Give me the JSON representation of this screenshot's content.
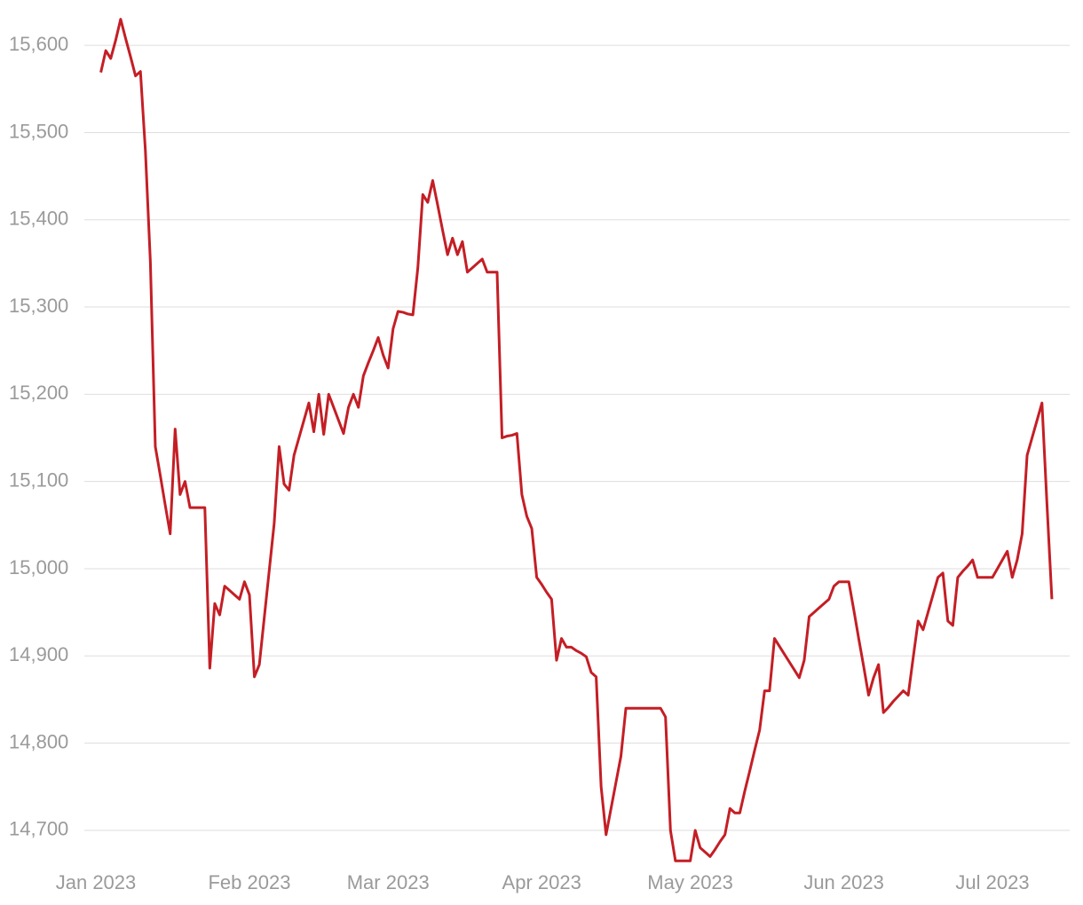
{
  "chart_data": {
    "type": "line",
    "color": "#c41e25",
    "grid": true,
    "ylim": [
      14650,
      15650
    ],
    "yticks": [
      {
        "value": 14700,
        "label": "14,700"
      },
      {
        "value": 14800,
        "label": "14,800"
      },
      {
        "value": 14900,
        "label": "14,900"
      },
      {
        "value": 15000,
        "label": "15,000"
      },
      {
        "value": 15100,
        "label": "15,100"
      },
      {
        "value": 15200,
        "label": "15,200"
      },
      {
        "value": 15300,
        "label": "15,300"
      },
      {
        "value": 15400,
        "label": "15,400"
      },
      {
        "value": 15500,
        "label": "15,500"
      },
      {
        "value": 15600,
        "label": "15,600"
      }
    ],
    "categories": [
      "Jan 2023",
      null,
      null,
      null,
      null,
      null,
      null,
      null,
      null,
      null,
      null,
      null,
      null,
      null,
      null,
      null,
      null,
      null,
      null,
      null,
      null,
      null,
      null,
      null,
      null,
      null,
      null,
      null,
      null,
      null,
      null,
      "Feb 2023",
      null,
      null,
      null,
      null,
      null,
      null,
      null,
      null,
      null,
      null,
      null,
      null,
      null,
      null,
      null,
      null,
      null,
      null,
      null,
      null,
      null,
      null,
      null,
      null,
      null,
      null,
      null,
      "Mar 2023",
      null,
      null,
      null,
      null,
      null,
      null,
      null,
      null,
      null,
      null,
      null,
      null,
      null,
      null,
      null,
      null,
      null,
      null,
      null,
      null,
      null,
      null,
      null,
      null,
      null,
      null,
      null,
      null,
      null,
      null,
      "Apr 2023",
      null,
      null,
      null,
      null,
      null,
      null,
      null,
      null,
      null,
      null,
      null,
      null,
      null,
      null,
      null,
      null,
      null,
      null,
      null,
      null,
      null,
      null,
      null,
      null,
      null,
      null,
      null,
      null,
      null,
      "May 2023",
      null,
      null,
      null,
      null,
      null,
      null,
      null,
      null,
      null,
      null,
      null,
      null,
      null,
      null,
      null,
      null,
      null,
      null,
      null,
      null,
      null,
      null,
      null,
      null,
      null,
      null,
      null,
      null,
      null,
      null,
      "Jun 2023",
      null,
      null,
      null,
      null,
      null,
      null,
      null,
      null,
      null,
      null,
      null,
      null,
      null,
      null,
      null,
      null,
      null,
      null,
      null,
      null,
      null,
      null,
      null,
      null,
      null,
      null,
      null,
      null,
      null,
      "Jul 2023",
      null,
      null,
      null,
      null,
      null,
      null,
      null,
      null,
      null,
      null,
      null,
      null
    ],
    "values": [
      null,
      15569,
      15594,
      15585,
      15606,
      15630,
      15608,
      15587,
      15565,
      15570,
      15479,
      15352,
      15140,
      15107,
      15073,
      15040,
      15160,
      15085,
      15100,
      15070,
      15070,
      15070,
      15070,
      14886,
      14960,
      14947,
      14980,
      14975,
      14970,
      14965,
      14985,
      14970,
      14876,
      14890,
      14944,
      14998,
      15052,
      15140,
      15097,
      15090,
      15130,
      15150,
      15170,
      15190,
      15157,
      15200,
      15154,
      15200,
      15185,
      15170,
      15155,
      15185,
      15200,
      15185,
      15221,
      15236,
      15250,
      15265,
      15245,
      15230,
      15275,
      15295,
      15294,
      15292,
      15291,
      15345,
      15429,
      15420,
      15445,
      15417,
      15388,
      15360,
      15379,
      15360,
      15375,
      15340,
      15345,
      15350,
      15355,
      15340,
      15340,
      15340,
      15150,
      15152,
      15153,
      15155,
      15085,
      15060,
      15046,
      14990,
      14982,
      14973,
      14965,
      14895,
      14920,
      14910,
      14910,
      14906,
      14903,
      14899,
      14881,
      14876,
      14750,
      14695,
      14725,
      14755,
      14785,
      14840,
      14840,
      14840,
      14840,
      14840,
      14840,
      14840,
      14840,
      14830,
      14700,
      14665,
      14665,
      14665,
      14665,
      14700,
      14680,
      14675,
      14670,
      14678,
      14687,
      14695,
      14725,
      14720,
      14720,
      14745,
      14768,
      14792,
      14815,
      14860,
      14860,
      14920,
      14911,
      14902,
      14893,
      14884,
      14875,
      14895,
      14945,
      14950,
      14955,
      14960,
      14965,
      14980,
      14985,
      14985,
      14985,
      14953,
      14920,
      14888,
      14855,
      14875,
      14890,
      14835,
      14841,
      14848,
      14854,
      14860,
      14855,
      14898,
      14940,
      14930,
      14950,
      14970,
      14990,
      14995,
      14940,
      14935,
      14990,
      14997,
      15003,
      15010,
      14990,
      14990,
      14990,
      14990,
      15000,
      15010,
      15020,
      14990,
      15010,
      15040,
      15130,
      15150,
      15170,
      15190,
      15075,
      14965
    ]
  }
}
